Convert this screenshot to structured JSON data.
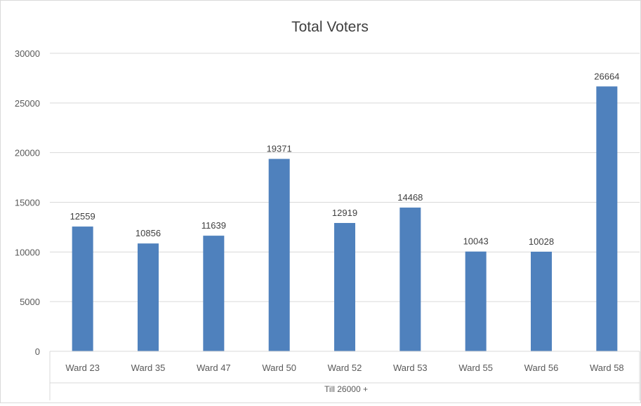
{
  "chart_data": {
    "type": "bar",
    "title": "Total Voters",
    "categories": [
      "Ward 23",
      "Ward 35",
      "Ward 47",
      "Ward 50",
      "Ward 52",
      "Ward 53",
      "Ward 55",
      "Ward 56",
      "Ward 58"
    ],
    "values": [
      12559,
      10856,
      11639,
      19371,
      12919,
      14468,
      10043,
      10028,
      26664
    ],
    "category_group_label": "Till 26000 +",
    "ylim": [
      0,
      30000
    ],
    "yticks": [
      0,
      5000,
      10000,
      15000,
      20000,
      25000,
      30000
    ],
    "grid": true,
    "legend": "none",
    "data_labels": true,
    "colors": {
      "bar": "#4f81bd",
      "grid": "#d9d9d9",
      "text": "#595959",
      "title": "#404040"
    }
  }
}
